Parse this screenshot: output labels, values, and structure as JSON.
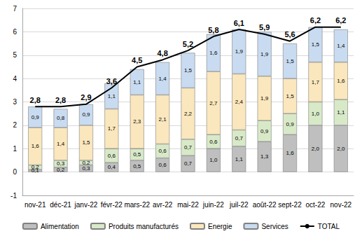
{
  "chart_data": {
    "type": "bar",
    "stacked": true,
    "data_labels": true,
    "grid": true,
    "legend": "bottom",
    "categories": [
      "nov-21",
      "déc-21",
      "janv-22",
      "févr-22",
      "mars-22",
      "avr-22",
      "mai-22",
      "juin-22",
      "juil-22",
      "août-22",
      "sept-22",
      "oct-22",
      "nov-22"
    ],
    "ylim": [
      -1,
      7
    ],
    "yticks": [
      -1,
      0,
      1,
      2,
      3,
      4,
      5,
      6,
      7
    ],
    "series": [
      {
        "name": "Alimentation",
        "type": "bar",
        "color": "#bfbfbf",
        "values": [
          0.1,
          0.2,
          0.3,
          0.4,
          0.5,
          0.6,
          0.7,
          1.0,
          1.1,
          1.3,
          1.6,
          2.0,
          2.0
        ],
        "value_labels": [
          "0,1",
          "0,2",
          "0,3",
          "0,4",
          "0,5",
          "0,6",
          "0,7",
          "1,0",
          "1,1",
          "1,3",
          "1,6",
          "2,0",
          "2,0"
        ]
      },
      {
        "name": "Produits manufacturés",
        "type": "bar",
        "color": "#d8e9c8",
        "values": [
          0.2,
          0.3,
          0.2,
          0.6,
          0.5,
          0.6,
          0.7,
          0.6,
          0.7,
          0.9,
          0.9,
          1.0,
          1.1
        ],
        "value_labels": [
          "0,2",
          "0,3",
          "0,2",
          "0,6",
          "0,5",
          "0,6",
          "0,7",
          "0,6",
          "0,7",
          "0,9",
          "0,9",
          "1,0",
          "1,1"
        ]
      },
      {
        "name": "Energie",
        "type": "bar",
        "color": "#fbe7bd",
        "values": [
          1.6,
          1.4,
          1.5,
          1.7,
          2.3,
          2.1,
          2.2,
          2.7,
          2.4,
          1.9,
          1.5,
          1.7,
          1.6
        ],
        "value_labels": [
          "1,6",
          "1,4",
          "1,5",
          "1,7",
          "2,3",
          "2,1",
          "2,2",
          "2,7",
          "2,4",
          "1,9",
          "1,5",
          "1,7",
          "1,6"
        ]
      },
      {
        "name": "Services",
        "type": "bar",
        "color": "#c9dbf0",
        "values": [
          0.9,
          0.8,
          0.9,
          1.1,
          1.1,
          1.4,
          1.5,
          1.6,
          1.9,
          1.9,
          1.5,
          1.5,
          1.4
        ],
        "value_labels": [
          "0,9",
          "0,8",
          "0,9",
          "1,1",
          "1,1",
          "1,4",
          "1,5",
          "1,6",
          "1,9",
          "1,9",
          "1,5",
          "1,5",
          "1,4"
        ]
      },
      {
        "name": "TOTAL",
        "type": "line",
        "color": "#000000",
        "values": [
          2.8,
          2.8,
          2.9,
          3.6,
          4.5,
          4.8,
          5.2,
          5.8,
          6.1,
          5.9,
          5.6,
          6.2,
          6.2
        ],
        "value_labels": [
          "2,8",
          "2,8",
          "2,9",
          "3,6",
          "4,5",
          "4,8",
          "5,2",
          "5,8",
          "6,1",
          "5,9",
          "5,6",
          "6,2",
          "6,2"
        ]
      }
    ]
  }
}
